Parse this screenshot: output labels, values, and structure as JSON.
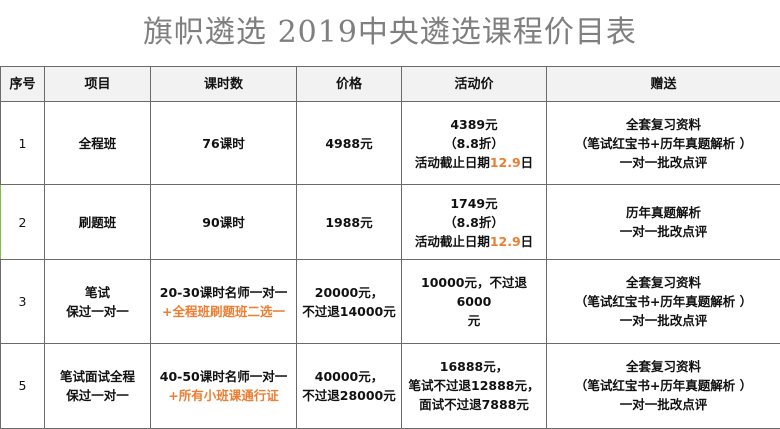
{
  "title": "旗帜遴选  2019中央遴选课程价目表",
  "headers": [
    "序号",
    "项目",
    "课时数",
    "价格",
    "活动价",
    "赠送"
  ],
  "rows": [
    {
      "index": "1",
      "project": [
        "全程班"
      ],
      "hours": [
        "76课时"
      ],
      "hours_highlight": "",
      "price": [
        "4988元"
      ],
      "promo": [
        "4389元",
        "（8.8折）"
      ],
      "promo_deadline_prefix": "活动截止日期",
      "promo_deadline_date": "12.9",
      "promo_deadline_suffix": "日",
      "gift": [
        "全套复习资料",
        "（笔试红宝书+历年真题解析 ）",
        "一对一批改点评"
      ]
    },
    {
      "index": "2",
      "project": [
        "刷题班"
      ],
      "hours": [
        "90课时"
      ],
      "hours_highlight": "",
      "price": [
        "1988元"
      ],
      "promo": [
        "1749元",
        "（8.8折）"
      ],
      "promo_deadline_prefix": "活动截止日期",
      "promo_deadline_date": "12.9",
      "promo_deadline_suffix": "日",
      "gift": [
        "历年真题解析",
        "一对一批改点评"
      ]
    },
    {
      "index": "3",
      "project": [
        "笔试",
        "保过一对一"
      ],
      "hours": [
        "20-30课时名师一对一"
      ],
      "hours_highlight": "+全程班刷题班二选一",
      "price": [
        "20000元，",
        "不过退14000元"
      ],
      "promo": [
        "10000元，不过退6000",
        "元"
      ],
      "promo_deadline_prefix": "",
      "promo_deadline_date": "",
      "promo_deadline_suffix": "",
      "gift": [
        "全套复习资料",
        "（笔试红宝书+历年真题解析 ）",
        "一对一批改点评"
      ]
    },
    {
      "index": "5",
      "project": [
        "笔试面试全程",
        "保过一对一"
      ],
      "hours": [
        "40-50课时名师一对一"
      ],
      "hours_highlight": "+所有小班课通行证",
      "price": [
        "40000元，",
        "不过退28000元"
      ],
      "promo": [
        "16888元，",
        "笔试不过退12888元，",
        "面试不过退7888元"
      ],
      "promo_deadline_prefix": "",
      "promo_deadline_date": "",
      "promo_deadline_suffix": "",
      "gift": [
        "全套复习资料",
        "（笔试红宝书+历年真题解析 ）",
        "一对一批改点评"
      ]
    }
  ],
  "colors": {
    "title": "#7f7f7f",
    "highlight": "#ed7d31",
    "header_bg": "#f2f2f2",
    "border": "#6b6b6b"
  }
}
